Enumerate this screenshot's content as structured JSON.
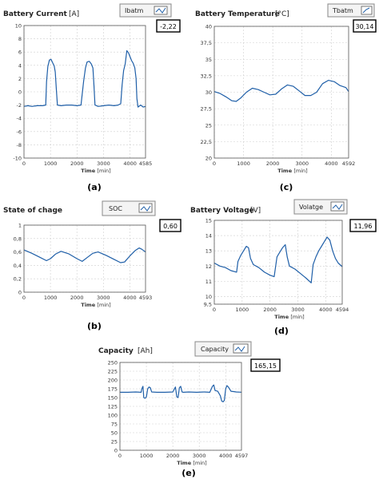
{
  "charts": [
    {
      "label": "(a)",
      "chart_data": {
        "type": "line",
        "title": "Battery Current",
        "title_unit": "[A]",
        "legend": "Ibatm",
        "readout": "-2,22",
        "xlabel": "Time",
        "xunit": "[min]",
        "ylabel": "",
        "xlim": [
          0,
          4585
        ],
        "ylim": [
          -10,
          10
        ],
        "x_ticks": [
          0,
          1000,
          2000,
          3000,
          4000
        ],
        "x_tick_labels": [
          "0",
          "1000",
          "2000",
          "3000",
          "4000"
        ],
        "x_end_label": "4585",
        "y_ticks": [
          -10,
          -8,
          -6,
          -4,
          -2,
          0,
          2,
          4,
          6,
          8,
          10
        ],
        "y_tick_labels": [
          "-10",
          "-8",
          "-6",
          "-4",
          "-2",
          "0",
          "2",
          "4",
          "6",
          "8",
          "10"
        ],
        "grid": true,
        "series": [
          {
            "color": "#1f5fa8",
            "x": [
              0,
              150,
              300,
              500,
              700,
              820,
              850,
              900,
              960,
              1020,
              1080,
              1140,
              1180,
              1220,
              1260,
              1400,
              1600,
              1800,
              2000,
              2150,
              2250,
              2320,
              2380,
              2460,
              2540,
              2600,
              2640,
              2680,
              2800,
              3000,
              3200,
              3400,
              3550,
              3650,
              3700,
              3760,
              3820,
              3880,
              3940,
              4000,
              4060,
              4120,
              4180,
              4230,
              4260,
              4300,
              4400,
              4500,
              4585
            ],
            "y": [
              -2.2,
              -2.1,
              -2.2,
              -2.1,
              -2.1,
              -2.0,
              1.5,
              3.8,
              4.8,
              4.9,
              4.4,
              3.9,
              3.0,
              0.5,
              -2.0,
              -2.1,
              -2.0,
              -2.0,
              -2.1,
              -2.0,
              1.6,
              3.6,
              4.5,
              4.6,
              4.2,
              3.6,
              1.0,
              -2.0,
              -2.2,
              -2.1,
              -2.0,
              -2.1,
              -2.0,
              -1.8,
              1.0,
              3.2,
              4.2,
              6.2,
              5.9,
              5.3,
              4.7,
              4.3,
              3.6,
              2.0,
              -1.0,
              -2.3,
              -2.0,
              -2.3,
              -2.2
            ]
          }
        ]
      }
    },
    {
      "label": "(c)",
      "chart_data": {
        "type": "line",
        "title": "Battery Temperature",
        "title_unit": "[°C]",
        "legend": "Tbatm",
        "readout": "30,14",
        "xlabel": "Time",
        "xunit": "[min]",
        "ylabel": "",
        "xlim": [
          0,
          4592
        ],
        "ylim": [
          20,
          40
        ],
        "x_ticks": [
          0,
          1000,
          2000,
          3000,
          4000
        ],
        "x_tick_labels": [
          "0",
          "1000",
          "2000",
          "3000",
          "4000"
        ],
        "x_end_label": "4592",
        "y_ticks": [
          20,
          22.5,
          25,
          27.5,
          30,
          32.5,
          35,
          37.5,
          40
        ],
        "y_tick_labels": [
          "20",
          "22,5",
          "25",
          "27,5",
          "30",
          "32,5",
          "35",
          "37,5",
          "40"
        ],
        "grid": true,
        "series": [
          {
            "color": "#1f5fa8",
            "x": [
              0,
              200,
              400,
              600,
              750,
              900,
              1100,
              1300,
              1500,
              1700,
              1900,
              2100,
              2300,
              2500,
              2700,
              2900,
              3100,
              3300,
              3500,
              3700,
              3900,
              4100,
              4300,
              4500,
              4592
            ],
            "y": [
              30.1,
              29.8,
              29.3,
              28.7,
              28.6,
              29.1,
              30.0,
              30.6,
              30.4,
              30.0,
              29.6,
              29.7,
              30.5,
              31.1,
              30.9,
              30.2,
              29.5,
              29.5,
              30.0,
              31.3,
              31.8,
              31.6,
              31.0,
              30.7,
              30.1
            ]
          }
        ]
      }
    },
    {
      "label": "(b)",
      "chart_data": {
        "type": "line",
        "title": "State of chage",
        "title_unit": "",
        "legend": "SOC",
        "readout": "0,60",
        "xlabel": "Time",
        "xunit": "[min]",
        "ylabel": "",
        "xlim": [
          0,
          4593
        ],
        "ylim": [
          0,
          1
        ],
        "x_ticks": [
          0,
          1000,
          2000,
          3000,
          4000
        ],
        "x_tick_labels": [
          "0",
          "1000",
          "2000",
          "3000",
          "4000"
        ],
        "x_end_label": "4593",
        "y_ticks": [
          0,
          0.2,
          0.4,
          0.6,
          0.8,
          1
        ],
        "y_tick_labels": [
          "0",
          "0,2",
          "0,4",
          "0,6",
          "0,8",
          "1"
        ],
        "grid": true,
        "series": [
          {
            "color": "#1f5fa8",
            "x": [
              0,
              300,
              600,
              850,
              1000,
              1200,
              1400,
              1700,
              2000,
              2200,
              2400,
              2600,
              2800,
              3100,
              3400,
              3650,
              3800,
              4000,
              4200,
              4350,
              4450,
              4593
            ],
            "y": [
              0.63,
              0.58,
              0.52,
              0.47,
              0.5,
              0.57,
              0.61,
              0.57,
              0.5,
              0.46,
              0.52,
              0.58,
              0.6,
              0.55,
              0.49,
              0.44,
              0.45,
              0.54,
              0.62,
              0.66,
              0.64,
              0.6
            ]
          }
        ]
      }
    },
    {
      "label": "(d)",
      "chart_data": {
        "type": "line",
        "title": "Battery Voltage",
        "title_unit": "[V]",
        "legend": "Volatge",
        "readout": "11,96",
        "xlabel": "Time",
        "xunit": "[min]",
        "ylabel": "",
        "xlim": [
          0,
          4594
        ],
        "ylim": [
          9.5,
          15
        ],
        "x_ticks": [
          0,
          1000,
          2000,
          3000,
          4000
        ],
        "x_tick_labels": [
          "0",
          "1000",
          "2000",
          "3000",
          "4000"
        ],
        "x_end_label": "4594",
        "y_ticks": [
          9.5,
          10,
          11,
          12,
          13,
          14,
          15
        ],
        "y_tick_labels": [
          "9,5",
          "10",
          "11",
          "12",
          "13",
          "14",
          "15"
        ],
        "grid": true,
        "series": [
          {
            "color": "#1f5fa8",
            "x": [
              0,
              200,
              400,
              600,
              800,
              850,
              950,
              1050,
              1150,
              1230,
              1300,
              1400,
              1600,
              1800,
              2000,
              2150,
              2250,
              2350,
              2450,
              2550,
              2620,
              2700,
              2900,
              3100,
              3300,
              3480,
              3550,
              3650,
              3750,
              3850,
              3950,
              4050,
              4150,
              4250,
              4350,
              4450,
              4594
            ],
            "y": [
              12.2,
              12.0,
              11.9,
              11.7,
              11.6,
              12.3,
              12.7,
              13.0,
              13.3,
              13.2,
              12.5,
              12.1,
              11.9,
              11.6,
              11.4,
              11.3,
              12.6,
              12.9,
              13.2,
              13.4,
              12.6,
              12.0,
              11.8,
              11.5,
              11.2,
              10.9,
              12.1,
              12.6,
              13.0,
              13.3,
              13.6,
              13.9,
              13.7,
              13.0,
              12.5,
              12.2,
              11.96
            ]
          }
        ]
      }
    },
    {
      "label": "(e)",
      "chart_data": {
        "type": "line",
        "title": "Capacity",
        "title_unit": "[Ah]",
        "legend": "Capacity",
        "readout": "165,15",
        "xlabel": "Time",
        "xunit": "[min]",
        "ylabel": "",
        "xlim": [
          0,
          4597
        ],
        "ylim": [
          0,
          250
        ],
        "x_ticks": [
          0,
          1000,
          2000,
          3000,
          4000
        ],
        "x_tick_labels": [
          "0",
          "1000",
          "2000",
          "3000",
          "4000"
        ],
        "x_end_label": "4597",
        "y_ticks": [
          0,
          25,
          50,
          75,
          100,
          125,
          150,
          175,
          200,
          225,
          250
        ],
        "y_tick_labels": [
          "0",
          "25",
          "50",
          "75",
          "100",
          "125",
          "150",
          "175",
          "200",
          "225",
          "250"
        ],
        "grid": true,
        "series": [
          {
            "color": "#1f5fa8",
            "x": [
              0,
              300,
              600,
              800,
              830,
              870,
              900,
              950,
              1000,
              1050,
              1100,
              1150,
              1200,
              1400,
              1700,
              2000,
              2100,
              2150,
              2200,
              2250,
              2300,
              2350,
              2400,
              2600,
              2900,
              3200,
              3400,
              3500,
              3550,
              3600,
              3700,
              3800,
              3850,
              3900,
              3950,
              4000,
              4050,
              4100,
              4200,
              4300,
              4400,
              4597
            ],
            "y": [
              165,
              165,
              166,
              165,
              175,
              182,
              150,
              148,
              152,
              175,
              180,
              178,
              166,
              165,
              165,
              166,
              180,
              152,
              150,
              178,
              182,
              166,
              165,
              166,
              165,
              166,
              165,
              182,
              186,
              170,
              168,
              155,
              140,
              138,
              142,
              176,
              184,
              180,
              168,
              167,
              166,
              165.15
            ]
          }
        ]
      }
    }
  ]
}
